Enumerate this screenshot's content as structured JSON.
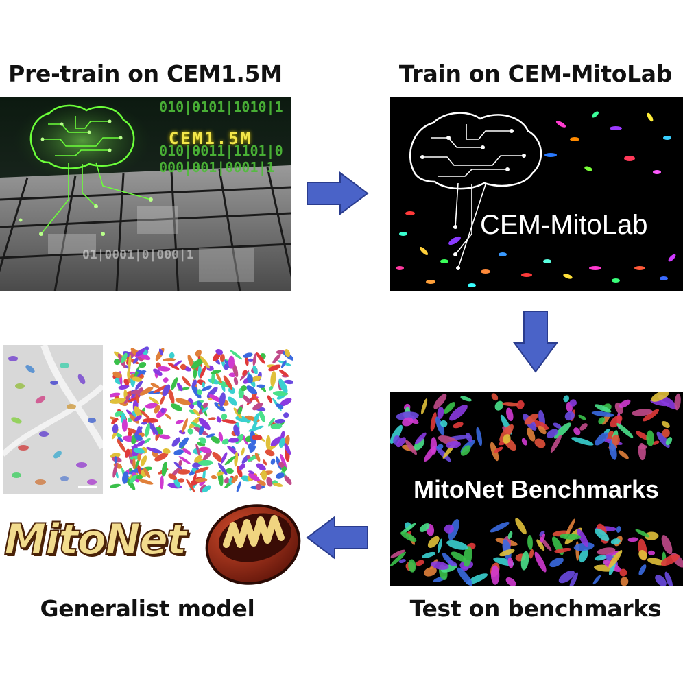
{
  "steps": {
    "pretrain": {
      "heading": "Pre-train on CEM1.5M",
      "tag": "CEM1.5M"
    },
    "train": {
      "heading": "Train on CEM-MitoLab",
      "tag": "CEM-MitoLab"
    },
    "test": {
      "heading": "Test on benchmarks",
      "tag": "MitoNet Benchmarks"
    },
    "generalist": {
      "heading": "Generalist model",
      "logo": "MitoNet"
    }
  },
  "binary_rows": [
    "010|0101|1010|1",
    "010|0011|1101|0",
    "000|001|0001|1",
    "01|0001|0|000|1"
  ],
  "colors": {
    "arrow_fill": "#4a63c8",
    "arrow_stroke": "#2a3c8e",
    "brain_green": "#6cff3a",
    "binary_green": "#4fbf39",
    "mito_shell": "#7a1a10",
    "mito_inner": "#f0d480"
  },
  "icons": [
    "ai-brain-icon",
    "mitochondrion-icon",
    "right-arrow-icon",
    "down-arrow-icon",
    "left-arrow-icon"
  ]
}
